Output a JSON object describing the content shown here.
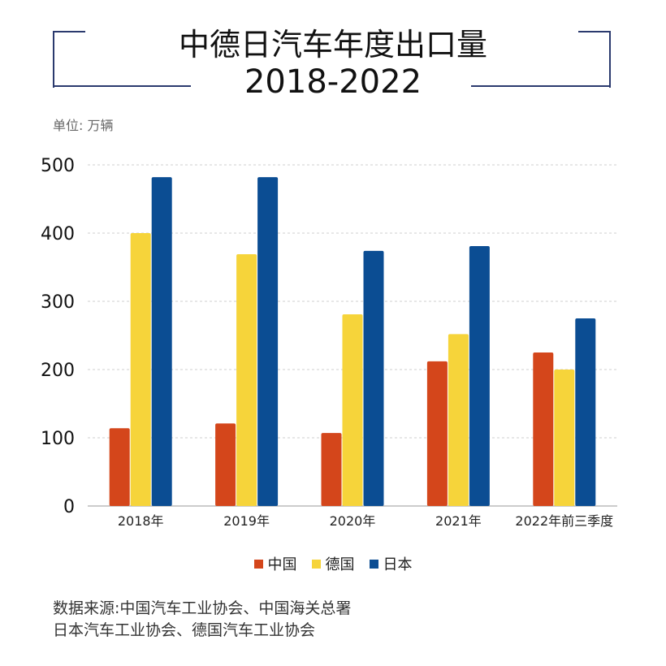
{
  "title": {
    "line1": "中德日汽车年度出口量",
    "line2": "2018-2022"
  },
  "unit_label": "单位: 万辆",
  "legend": [
    {
      "label": "中国",
      "color": "#d4461b"
    },
    {
      "label": "德国",
      "color": "#f6d43a"
    },
    {
      "label": "日本",
      "color": "#0b4d93"
    }
  ],
  "source": {
    "line1": "数据来源:中国汽车工业协会、中国海关总署",
    "line2": "日本汽车工业协会、德国汽车工业协会"
  },
  "chart_data": {
    "type": "bar",
    "categories": [
      "2018年",
      "2019年",
      "2020年",
      "2021年",
      "2022年前三季度"
    ],
    "series": [
      {
        "name": "中国",
        "color": "#d4461b",
        "values": [
          114,
          121,
          107,
          212,
          225
        ]
      },
      {
        "name": "德国",
        "color": "#f6d43a",
        "values": [
          400,
          369,
          281,
          252,
          200
        ]
      },
      {
        "name": "日本",
        "color": "#0b4d93",
        "values": [
          482,
          482,
          374,
          381,
          275
        ]
      }
    ],
    "ylim": [
      0,
      500
    ],
    "yticks": [
      0,
      100,
      200,
      300,
      400,
      500
    ],
    "grid": true,
    "legend_position": "bottom"
  }
}
